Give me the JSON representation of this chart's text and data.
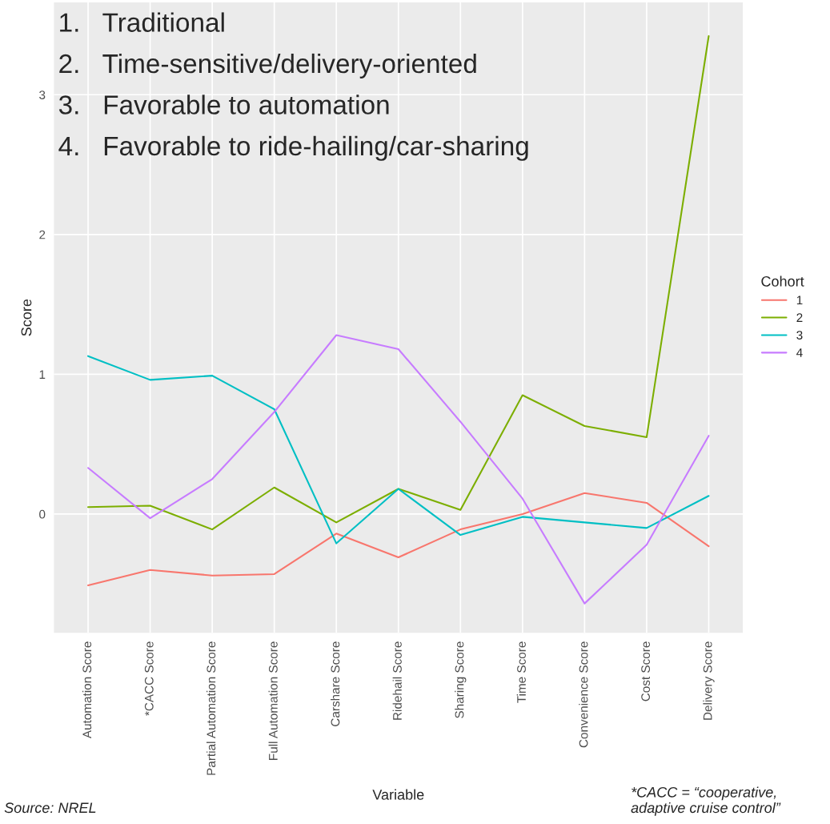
{
  "chart_data": {
    "type": "line",
    "xlabel": "Variable",
    "ylabel": "Score",
    "legend_title": "Cohort",
    "legend": "right",
    "grid": true,
    "categories": [
      "Automation Score",
      "*CACC Score",
      "Partial Automation Score",
      "Full Automation Score",
      "Carshare Score",
      "Ridehail Score",
      "Sharing Score",
      "Time Score",
      "Convenience Score",
      "Cost Score",
      "Delivery Score"
    ],
    "ylim": [
      -0.85,
      3.66
    ],
    "yticks": [
      0,
      1,
      2,
      3
    ],
    "series": [
      {
        "name": "1",
        "color": "#f8766d",
        "values": [
          -0.51,
          -0.4,
          -0.44,
          -0.43,
          -0.14,
          -0.31,
          -0.11,
          0.0,
          0.15,
          0.08,
          -0.23
        ]
      },
      {
        "name": "2",
        "color": "#7cae00",
        "values": [
          0.05,
          0.06,
          -0.11,
          0.19,
          -0.06,
          0.18,
          0.03,
          0.85,
          0.63,
          0.55,
          3.42
        ]
      },
      {
        "name": "3",
        "color": "#00bfc4",
        "values": [
          1.13,
          0.96,
          0.99,
          0.75,
          -0.21,
          0.18,
          -0.15,
          -0.02,
          -0.06,
          -0.1,
          0.13
        ]
      },
      {
        "name": "4",
        "color": "#c77cff",
        "values": [
          0.33,
          -0.03,
          0.25,
          0.73,
          1.28,
          1.18,
          0.66,
          0.11,
          -0.64,
          -0.22,
          0.56
        ]
      }
    ],
    "annotations": [
      "1.   Traditional",
      "2.   Time-sensitive/delivery-oriented",
      "3.   Favorable to automation",
      "4.   Favorable to ride-hailing/car-sharing",
      "Source: NREL",
      "*CACC = “cooperative, adaptive cruise control”"
    ]
  }
}
